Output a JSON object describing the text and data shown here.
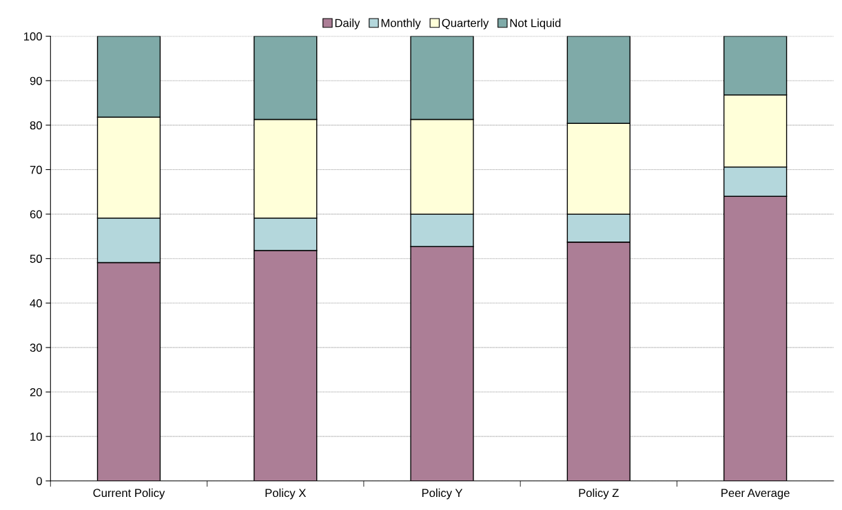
{
  "chart_data": {
    "type": "bar",
    "stacked": true,
    "categories": [
      "Current Policy",
      "Policy X",
      "Policy Y",
      "Policy Z",
      "Peer Average"
    ],
    "series": [
      {
        "name": "Daily",
        "color": "#ac7e96",
        "values": [
          49.1,
          51.8,
          52.7,
          53.7,
          64.0
        ]
      },
      {
        "name": "Monthly",
        "color": "#b4d7dc",
        "values": [
          10.0,
          7.3,
          7.3,
          6.3,
          6.6
        ]
      },
      {
        "name": "Quarterly",
        "color": "#ffffd9",
        "values": [
          22.7,
          22.2,
          21.3,
          20.4,
          16.2
        ]
      },
      {
        "name": "Not Liquid",
        "color": "#7faaa8",
        "values": [
          18.2,
          18.7,
          18.7,
          19.6,
          13.2
        ]
      }
    ],
    "ylim": [
      0,
      100
    ],
    "yticks": [
      0,
      10,
      20,
      30,
      40,
      50,
      60,
      70,
      80,
      90,
      100
    ],
    "grid": "y",
    "legend": "top"
  }
}
